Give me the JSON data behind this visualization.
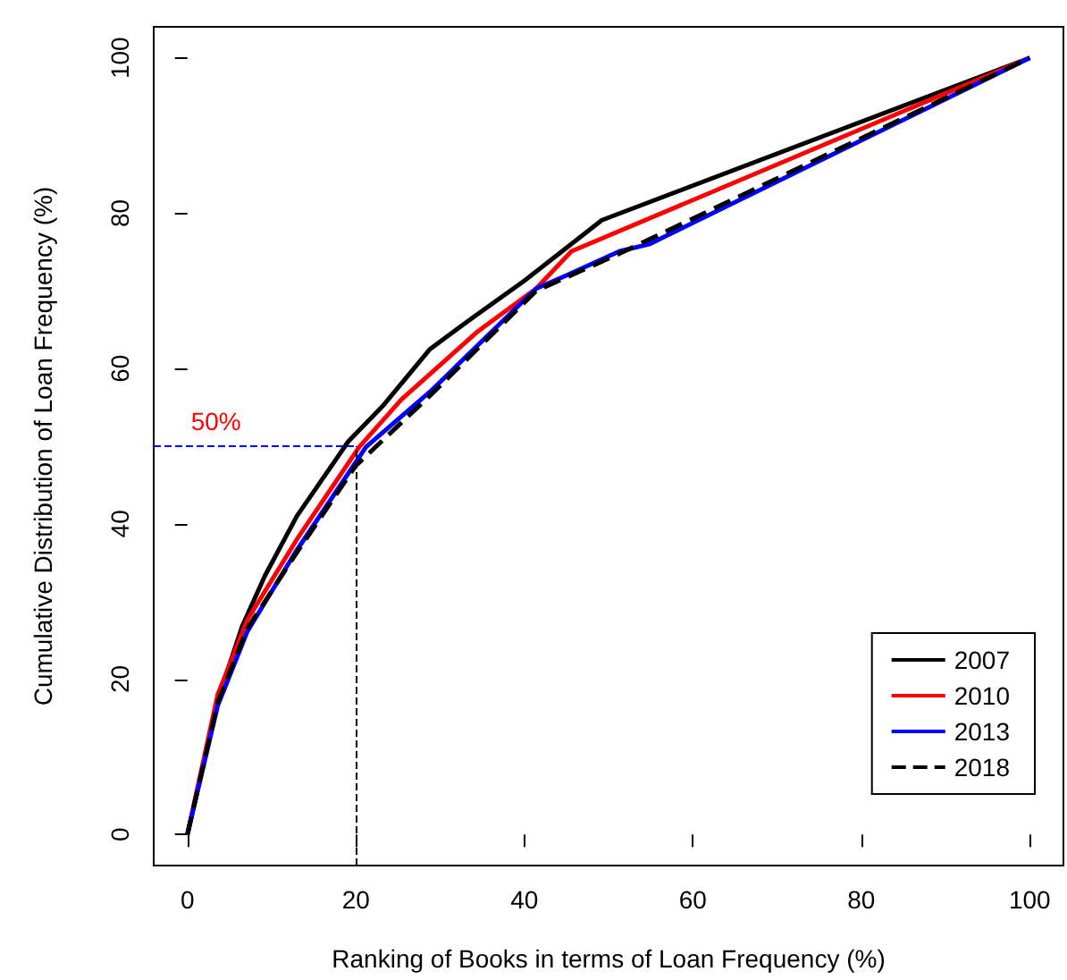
{
  "chart_data": {
    "type": "line",
    "xlabel": "Ranking of Books in terms of Loan Frequency (%)",
    "ylabel": "Cumulative Distribution of Loan Frequency (%)",
    "xlim": [
      -4,
      104
    ],
    "ylim": [
      -4,
      104
    ],
    "xticks": [
      0,
      20,
      40,
      60,
      80,
      100
    ],
    "yticks": [
      0,
      20,
      40,
      60,
      80,
      100
    ],
    "grid": false,
    "legend": "bottom right",
    "marker": "none",
    "series": [
      {
        "name": "2007",
        "color": "#000000",
        "line_style": "solid",
        "x": [
          0,
          3.6,
          6.5,
          9.2,
          13,
          19.1,
          23.3,
          28.8,
          33.8,
          40,
          49.2,
          100
        ],
        "values": [
          0,
          17.3,
          26.8,
          33.3,
          41,
          50.6,
          55.3,
          62.5,
          66.5,
          71.3,
          79.1,
          100
        ]
      },
      {
        "name": "2010",
        "color": "#ff0000",
        "line_style": "solid",
        "x": [
          0,
          3.6,
          7.1,
          13,
          20.4,
          25.4,
          34.5,
          41.4,
          45.6,
          100
        ],
        "values": [
          0,
          18,
          27.6,
          38,
          49.9,
          56,
          64.8,
          70.3,
          75.1,
          100
        ]
      },
      {
        "name": "2013",
        "color": "#0000ff",
        "line_style": "solid",
        "x": [
          0,
          3.6,
          7.1,
          12.8,
          21.2,
          28.8,
          41.4,
          45,
          51.3,
          54.8,
          100
        ],
        "values": [
          0,
          16.6,
          26.1,
          36.3,
          49.9,
          57,
          70.3,
          72,
          75.1,
          76,
          100
        ]
      },
      {
        "name": "2018",
        "color": "#000000",
        "line_style": "dashed",
        "x": [
          0,
          3.6,
          7.1,
          12.8,
          20,
          28.8,
          41.4,
          51.3,
          100
        ],
        "values": [
          0,
          17,
          26.5,
          36,
          47.5,
          56.5,
          70,
          74.8,
          100
        ]
      }
    ],
    "ref_lines": [
      {
        "axis": "y",
        "value": 50,
        "color": "#0000ff",
        "line_style": "dashed"
      },
      {
        "axis": "x",
        "value": 20,
        "color": "#000000",
        "line_style": "dashed"
      }
    ],
    "annotations": [
      {
        "text": "50%",
        "x": 0,
        "y": 50
      }
    ]
  }
}
